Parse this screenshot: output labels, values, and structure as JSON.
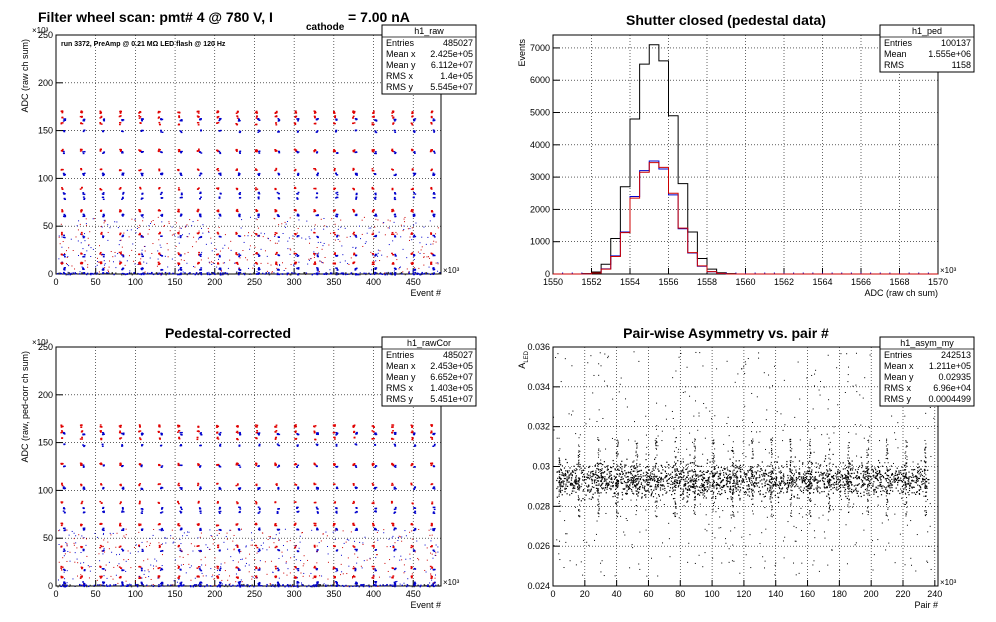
{
  "header": {
    "main_title": "Filter wheel scan: pmt#   4 @   780 V, I",
    "title_sub": "cathode",
    "title_tail": "= 7.00 nA"
  },
  "chart_data": [
    {
      "id": "raw",
      "type": "scatter",
      "title": "",
      "annotation": "run 3372, PreAmp @ 0.21 MΩ  LED flash @  120 Hz",
      "xlabel": "Event #",
      "ylabel": "ADC (raw ch sum)",
      "x_multiplier": "×10³",
      "y_multiplier": "×10³",
      "xlim": [
        0,
        485
      ],
      "ylim": [
        0,
        250
      ],
      "xticks": [
        0,
        50,
        100,
        150,
        200,
        250,
        300,
        350,
        400,
        450
      ],
      "yticks": [
        0,
        50,
        100,
        150,
        200,
        250
      ],
      "grid": true,
      "stats": {
        "name": "h1_raw",
        "rows": [
          [
            "Entries",
            "485027"
          ],
          [
            "Mean x",
            "2.425e+05"
          ],
          [
            "Mean y",
            "6.112e+07"
          ],
          [
            "RMS x",
            "1.4e+05"
          ],
          [
            "RMS y",
            "5.545e+07"
          ]
        ]
      },
      "series": [
        {
          "color": "#e00000",
          "levels": [
            170,
            165,
            158,
            130,
            110,
            90,
            67,
            43,
            22,
            12
          ]
        },
        {
          "color": "#0000cc",
          "levels": [
            162,
            150,
            128,
            105,
            85,
            80,
            62,
            40,
            20,
            6,
            1
          ]
        }
      ],
      "step_period": 24.5,
      "step_count": 20
    },
    {
      "id": "ped",
      "type": "line",
      "title": "Shutter closed (pedestal data)",
      "xlabel": "ADC (raw ch sum)",
      "ylabel": "Events",
      "x_multiplier": "×10³",
      "xlim": [
        1550,
        1570
      ],
      "ylim": [
        0,
        7400
      ],
      "xticks": [
        1550,
        1552,
        1554,
        1556,
        1558,
        1560,
        1562,
        1564,
        1566,
        1568,
        1570
      ],
      "yticks": [
        0,
        1000,
        2000,
        3000,
        4000,
        5000,
        6000,
        7000
      ],
      "grid": true,
      "stats": {
        "name": "h1_ped",
        "rows": [
          [
            "Entries",
            "100137"
          ],
          [
            "Mean",
            "1.555e+06"
          ],
          [
            "RMS",
            "1158"
          ]
        ]
      },
      "series": [
        {
          "color": "#000000",
          "x": [
            1550,
            1551.5,
            1552,
            1552.5,
            1553,
            1553.5,
            1554,
            1554.5,
            1555,
            1555.5,
            1556,
            1556.5,
            1557,
            1557.5,
            1558,
            1558.5,
            1559,
            1559.5,
            1570
          ],
          "y": [
            0,
            10,
            60,
            300,
            1100,
            2700,
            4800,
            6500,
            7100,
            6600,
            4900,
            2800,
            1300,
            480,
            150,
            40,
            10,
            0,
            0
          ]
        },
        {
          "color": "#0000cc",
          "x": [
            1550,
            1551.5,
            1552,
            1552.5,
            1553,
            1553.5,
            1554,
            1554.5,
            1555,
            1555.5,
            1556,
            1556.5,
            1557,
            1557.5,
            1558,
            1558.5,
            1559,
            1570
          ],
          "y": [
            0,
            5,
            30,
            160,
            560,
            1300,
            2400,
            3200,
            3500,
            3250,
            2450,
            1400,
            650,
            240,
            70,
            15,
            0,
            0
          ]
        },
        {
          "color": "#cc0000",
          "x": [
            1550,
            1551.5,
            1552,
            1552.5,
            1553,
            1553.5,
            1554,
            1554.5,
            1555,
            1555.5,
            1556,
            1556.5,
            1557,
            1557.5,
            1558,
            1558.5,
            1559,
            1570
          ],
          "y": [
            0,
            5,
            30,
            150,
            540,
            1280,
            2350,
            3150,
            3450,
            3300,
            2500,
            1420,
            660,
            250,
            75,
            18,
            0,
            0
          ]
        }
      ]
    },
    {
      "id": "rawcor",
      "type": "scatter",
      "title": "Pedestal-corrected",
      "xlabel": "Event #",
      "ylabel": "ADC (raw, ped-corr ch sum)",
      "x_multiplier": "×10³",
      "y_multiplier": "×10³",
      "xlim": [
        0,
        485
      ],
      "ylim": [
        0,
        250
      ],
      "xticks": [
        0,
        50,
        100,
        150,
        200,
        250,
        300,
        350,
        400,
        450
      ],
      "yticks": [
        0,
        50,
        100,
        150,
        200,
        250
      ],
      "grid": true,
      "stats": {
        "name": "h1_rawCor",
        "rows": [
          [
            "Entries",
            "485027"
          ],
          [
            "Mean x",
            "2.453e+05"
          ],
          [
            "Mean y",
            "6.652e+07"
          ],
          [
            "RMS x",
            "1.403e+05"
          ],
          [
            "RMS y",
            "5.451e+07"
          ]
        ]
      },
      "series": [
        {
          "color": "#e00000",
          "levels": [
            168,
            162,
            155,
            128,
            107,
            88,
            65,
            42,
            20,
            10
          ]
        },
        {
          "color": "#0000cc",
          "levels": [
            160,
            148,
            126,
            103,
            82,
            78,
            60,
            38,
            18,
            4,
            1
          ]
        }
      ],
      "step_period": 24.5,
      "step_count": 20
    },
    {
      "id": "asym",
      "type": "scatter",
      "title": "Pair-wise Asymmetry vs. pair #",
      "xlabel": "Pair #",
      "ylabel": "A",
      "ylabel_sub": "LED",
      "x_multiplier": "×10³",
      "xlim": [
        0,
        242
      ],
      "ylim": [
        0.024,
        0.036
      ],
      "xticks": [
        0,
        20,
        40,
        60,
        80,
        100,
        120,
        140,
        160,
        180,
        200,
        220,
        240
      ],
      "yticks": [
        0.024,
        0.026,
        0.028,
        0.03,
        0.032,
        0.034,
        0.036
      ],
      "grid": true,
      "stats": {
        "name": "h1_asym_my",
        "rows": [
          [
            "Entries",
            "242513"
          ],
          [
            "Mean x",
            "1.211e+05"
          ],
          [
            "Mean y",
            "0.02935"
          ],
          [
            "RMS x",
            "6.96e+04"
          ],
          [
            "RMS y",
            "0.0004499"
          ]
        ]
      },
      "band_center": 0.02935,
      "band_halfwidth": 0.0006,
      "spike_period": 12.1,
      "spike_top": 0.0315,
      "spike_bottom": 0.0275
    }
  ]
}
